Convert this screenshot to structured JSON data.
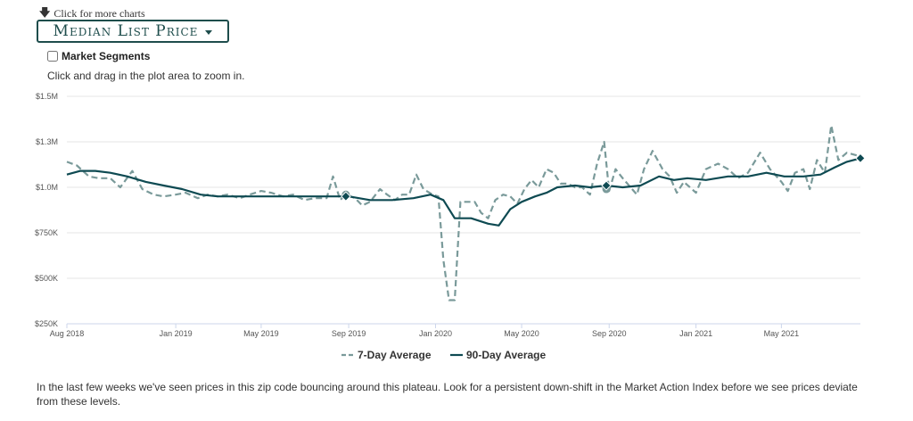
{
  "header": {
    "more_charts_label": "Click for more charts",
    "dropdown_label": "Median List Price",
    "segments_label": "Market Segments",
    "zoom_hint": "Click and drag in the plot area to zoom in."
  },
  "note": "In the last few weeks we've seen prices in this zip code bouncing around this plateau. Look for a persistent down-shift in the Market Action Index before we see prices deviate from these levels.",
  "colors": {
    "series_7day": "#7a9a9a",
    "series_90day": "#0e4a52",
    "grid": "#e6e6e6",
    "brand": "#1e4d4c"
  },
  "icons": {
    "arrow": "arrow-down-icon",
    "caret": "caret-down-icon"
  },
  "chart_data": {
    "type": "line",
    "title": "",
    "xlabel": "",
    "ylabel": "",
    "x_ticks": [
      {
        "label": "Aug 2018",
        "t": "2018-08-01"
      },
      {
        "label": "Jan 2019",
        "t": "2019-01-01"
      },
      {
        "label": "May 2019",
        "t": "2019-05-01"
      },
      {
        "label": "Sep 2019",
        "t": "2019-09-01"
      },
      {
        "label": "Jan 2020",
        "t": "2020-01-01"
      },
      {
        "label": "May 2020",
        "t": "2020-05-01"
      },
      {
        "label": "Sep 2020",
        "t": "2020-09-01"
      },
      {
        "label": "Jan 2021",
        "t": "2021-01-01"
      },
      {
        "label": "May 2021",
        "t": "2021-05-01"
      }
    ],
    "y_ticks": [
      {
        "label": "$250K",
        "v": 250000
      },
      {
        "label": "$500K",
        "v": 500000
      },
      {
        "label": "$750K",
        "v": 750000
      },
      {
        "label": "$1.0M",
        "v": 1000000
      },
      {
        "label": "$1.3M",
        "v": 1250000
      },
      {
        "label": "$1.5M",
        "v": 1500000
      }
    ],
    "xlim": [
      "2018-08-01",
      "2021-08-20"
    ],
    "ylim": [
      250000,
      1500000
    ],
    "grid": "horizontal",
    "legend_position": "bottom",
    "series": [
      {
        "name": "7-Day Average",
        "style": "dashed",
        "points": [
          [
            "2018-08-01",
            1140000
          ],
          [
            "2018-08-15",
            1120000
          ],
          [
            "2018-09-01",
            1060000
          ],
          [
            "2018-09-15",
            1050000
          ],
          [
            "2018-10-01",
            1050000
          ],
          [
            "2018-10-15",
            1000000
          ],
          [
            "2018-11-01",
            1090000
          ],
          [
            "2018-11-15",
            990000
          ],
          [
            "2018-12-01",
            960000
          ],
          [
            "2018-12-15",
            950000
          ],
          [
            "2019-01-01",
            960000
          ],
          [
            "2019-01-15",
            970000
          ],
          [
            "2019-02-01",
            940000
          ],
          [
            "2019-02-15",
            960000
          ],
          [
            "2019-03-01",
            950000
          ],
          [
            "2019-03-15",
            960000
          ],
          [
            "2019-04-01",
            940000
          ],
          [
            "2019-04-15",
            960000
          ],
          [
            "2019-05-01",
            980000
          ],
          [
            "2019-05-15",
            970000
          ],
          [
            "2019-06-01",
            950000
          ],
          [
            "2019-06-15",
            960000
          ],
          [
            "2019-07-01",
            930000
          ],
          [
            "2019-07-15",
            940000
          ],
          [
            "2019-08-01",
            940000
          ],
          [
            "2019-08-10",
            1060000
          ],
          [
            "2019-08-20",
            930000
          ],
          [
            "2019-08-28",
            960000
          ],
          [
            "2019-09-10",
            940000
          ],
          [
            "2019-09-20",
            900000
          ],
          [
            "2019-10-01",
            920000
          ],
          [
            "2019-10-15",
            990000
          ],
          [
            "2019-10-25",
            960000
          ],
          [
            "2019-11-05",
            930000
          ],
          [
            "2019-11-15",
            960000
          ],
          [
            "2019-11-25",
            960000
          ],
          [
            "2019-12-05",
            1070000
          ],
          [
            "2019-12-15",
            990000
          ],
          [
            "2019-12-28",
            960000
          ],
          [
            "2020-01-05",
            950000
          ],
          [
            "2020-01-12",
            600000
          ],
          [
            "2020-01-20",
            380000
          ],
          [
            "2020-01-28",
            380000
          ],
          [
            "2020-02-05",
            920000
          ],
          [
            "2020-02-15",
            920000
          ],
          [
            "2020-02-25",
            920000
          ],
          [
            "2020-03-05",
            860000
          ],
          [
            "2020-03-15",
            830000
          ],
          [
            "2020-03-25",
            930000
          ],
          [
            "2020-04-05",
            960000
          ],
          [
            "2020-04-15",
            950000
          ],
          [
            "2020-04-25",
            910000
          ],
          [
            "2020-05-05",
            990000
          ],
          [
            "2020-05-15",
            1040000
          ],
          [
            "2020-05-25",
            1000000
          ],
          [
            "2020-06-05",
            1100000
          ],
          [
            "2020-06-15",
            1080000
          ],
          [
            "2020-06-25",
            1020000
          ],
          [
            "2020-07-05",
            1020000
          ],
          [
            "2020-07-15",
            1000000
          ],
          [
            "2020-07-25",
            1000000
          ],
          [
            "2020-08-05",
            960000
          ],
          [
            "2020-08-15",
            1130000
          ],
          [
            "2020-08-25",
            1250000
          ],
          [
            "2020-09-01",
            980000
          ],
          [
            "2020-09-10",
            1100000
          ],
          [
            "2020-09-20",
            1050000
          ],
          [
            "2020-10-01",
            1000000
          ],
          [
            "2020-10-10",
            960000
          ],
          [
            "2020-10-20",
            1100000
          ],
          [
            "2020-11-01",
            1200000
          ],
          [
            "2020-11-15",
            1100000
          ],
          [
            "2020-11-25",
            1060000
          ],
          [
            "2020-12-05",
            970000
          ],
          [
            "2020-12-15",
            1030000
          ],
          [
            "2021-01-01",
            970000
          ],
          [
            "2021-01-15",
            1100000
          ],
          [
            "2021-02-01",
            1130000
          ],
          [
            "2021-02-15",
            1100000
          ],
          [
            "2021-03-01",
            1050000
          ],
          [
            "2021-03-15",
            1080000
          ],
          [
            "2021-04-01",
            1190000
          ],
          [
            "2021-04-15",
            1100000
          ],
          [
            "2021-05-01",
            1030000
          ],
          [
            "2021-05-10",
            980000
          ],
          [
            "2021-05-20",
            1080000
          ],
          [
            "2021-06-01",
            1100000
          ],
          [
            "2021-06-10",
            990000
          ],
          [
            "2021-06-20",
            1150000
          ],
          [
            "2021-07-01",
            1080000
          ],
          [
            "2021-07-10",
            1340000
          ],
          [
            "2021-07-20",
            1150000
          ],
          [
            "2021-08-01",
            1190000
          ],
          [
            "2021-08-20",
            1170000
          ]
        ]
      },
      {
        "name": "90-Day Average",
        "style": "solid",
        "points": [
          [
            "2018-08-01",
            1070000
          ],
          [
            "2018-08-20",
            1090000
          ],
          [
            "2018-09-10",
            1090000
          ],
          [
            "2018-10-01",
            1080000
          ],
          [
            "2018-10-25",
            1060000
          ],
          [
            "2018-11-20",
            1030000
          ],
          [
            "2018-12-15",
            1010000
          ],
          [
            "2019-01-10",
            990000
          ],
          [
            "2019-02-05",
            960000
          ],
          [
            "2019-03-01",
            950000
          ],
          [
            "2019-04-01",
            950000
          ],
          [
            "2019-05-01",
            950000
          ],
          [
            "2019-06-01",
            950000
          ],
          [
            "2019-07-01",
            950000
          ],
          [
            "2019-08-01",
            950000
          ],
          [
            "2019-09-01",
            950000
          ],
          [
            "2019-10-01",
            930000
          ],
          [
            "2019-11-01",
            930000
          ],
          [
            "2019-12-01",
            940000
          ],
          [
            "2019-12-25",
            960000
          ],
          [
            "2020-01-12",
            930000
          ],
          [
            "2020-01-28",
            830000
          ],
          [
            "2020-02-20",
            830000
          ],
          [
            "2020-03-15",
            800000
          ],
          [
            "2020-03-30",
            790000
          ],
          [
            "2020-04-15",
            880000
          ],
          [
            "2020-05-01",
            920000
          ],
          [
            "2020-05-20",
            950000
          ],
          [
            "2020-06-05",
            970000
          ],
          [
            "2020-06-20",
            1000000
          ],
          [
            "2020-07-15",
            1010000
          ],
          [
            "2020-08-05",
            1000000
          ],
          [
            "2020-08-28",
            1010000
          ],
          [
            "2020-09-20",
            1000000
          ],
          [
            "2020-10-15",
            1010000
          ],
          [
            "2020-11-10",
            1060000
          ],
          [
            "2020-12-01",
            1040000
          ],
          [
            "2020-12-20",
            1050000
          ],
          [
            "2021-01-15",
            1040000
          ],
          [
            "2021-02-15",
            1060000
          ],
          [
            "2021-03-15",
            1060000
          ],
          [
            "2021-04-10",
            1080000
          ],
          [
            "2021-05-05",
            1060000
          ],
          [
            "2021-06-01",
            1060000
          ],
          [
            "2021-06-25",
            1070000
          ],
          [
            "2021-07-15",
            1110000
          ],
          [
            "2021-08-01",
            1140000
          ],
          [
            "2021-08-20",
            1160000
          ]
        ]
      }
    ],
    "markers": [
      {
        "series": "7-Day Average",
        "t": "2019-08-28",
        "v": 960000,
        "shape": "circle"
      },
      {
        "series": "90-Day Average",
        "t": "2019-08-28",
        "v": 950000,
        "shape": "diamond"
      },
      {
        "series": "7-Day Average",
        "t": "2020-08-28",
        "v": 990000,
        "shape": "circle"
      },
      {
        "series": "90-Day Average",
        "t": "2020-08-28",
        "v": 1010000,
        "shape": "diamond"
      },
      {
        "series": "90-Day Average",
        "t": "2021-08-20",
        "v": 1160000,
        "shape": "diamond"
      }
    ]
  }
}
